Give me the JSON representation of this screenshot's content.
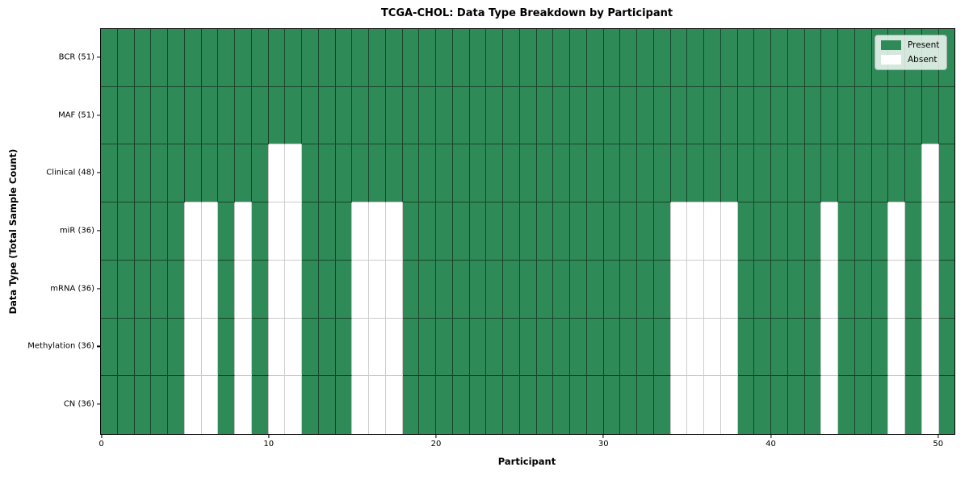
{
  "chart_data": {
    "type": "heatmap",
    "title": "TCGA-CHOL: Data Type Breakdown by Participant",
    "xlabel": "Participant",
    "ylabel": "Data Type (Total Sample Count)",
    "x_ticks": [
      0,
      10,
      20,
      30,
      40,
      50
    ],
    "x_range": [
      0,
      51
    ],
    "n_participants": 51,
    "legend": {
      "position": "upper right",
      "present_label": "Present",
      "absent_label": "Absent"
    },
    "colors": {
      "present": "#2e8b57",
      "absent": "#ffffff",
      "grid_on_present": "rgba(0,0,0,0.5)",
      "grid_on_absent": "#cccccc"
    },
    "rows": [
      {
        "name": "BCR",
        "label": "BCR (51)",
        "present_count": 51,
        "absent_participants": []
      },
      {
        "name": "MAF",
        "label": "MAF (51)",
        "present_count": 51,
        "absent_participants": []
      },
      {
        "name": "Clinical",
        "label": "Clinical (48)",
        "present_count": 48,
        "absent_participants": [
          10,
          11,
          49
        ]
      },
      {
        "name": "miR",
        "label": "miR (36)",
        "present_count": 36,
        "absent_participants": [
          5,
          6,
          8,
          10,
          11,
          15,
          16,
          17,
          34,
          35,
          36,
          37,
          43,
          47,
          49
        ]
      },
      {
        "name": "mRNA",
        "label": "mRNA (36)",
        "present_count": 36,
        "absent_participants": [
          5,
          6,
          8,
          10,
          11,
          15,
          16,
          17,
          34,
          35,
          36,
          37,
          43,
          47,
          49
        ]
      },
      {
        "name": "Methylation",
        "label": "Methylation (36)",
        "present_count": 36,
        "absent_participants": [
          5,
          6,
          8,
          10,
          11,
          15,
          16,
          17,
          34,
          35,
          36,
          37,
          43,
          47,
          49
        ]
      },
      {
        "name": "CN",
        "label": "CN (36)",
        "present_count": 36,
        "absent_participants": [
          5,
          6,
          8,
          10,
          11,
          15,
          16,
          17,
          34,
          35,
          36,
          37,
          43,
          47,
          49
        ]
      }
    ]
  }
}
